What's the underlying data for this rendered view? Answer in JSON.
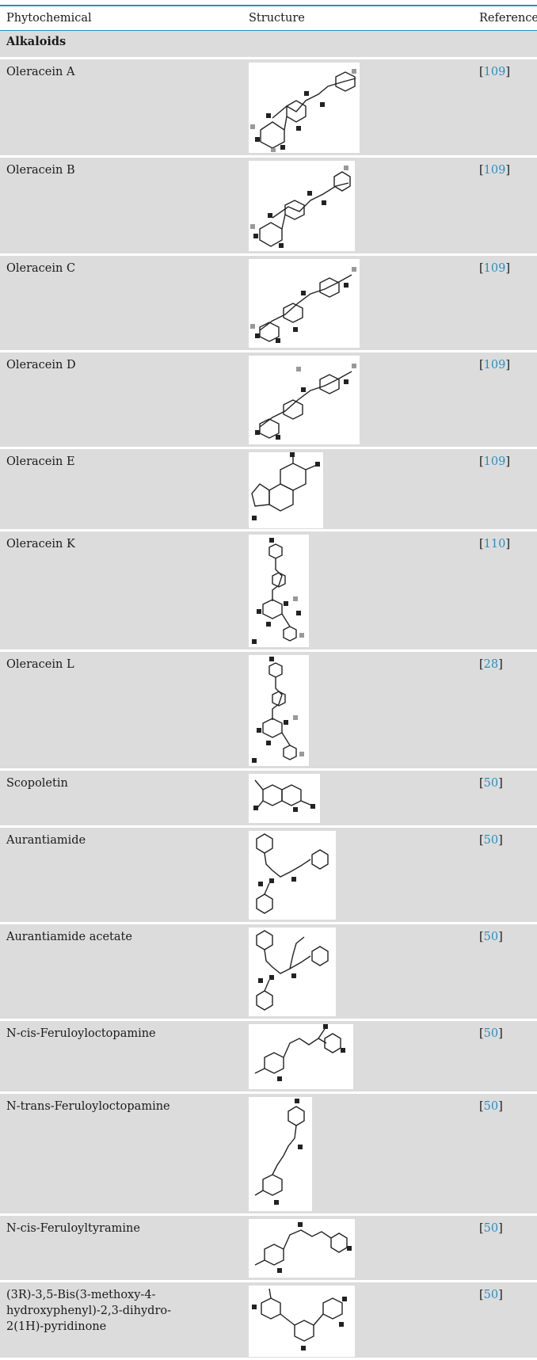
{
  "header": {
    "col1": "Phytochemical",
    "col2": "Structure",
    "col3": "Reference"
  },
  "category": "Alkaloids",
  "rows": [
    {
      "name": "Oleracein A",
      "ref": "109",
      "structure_icon": "molecule-structure-icon"
    },
    {
      "name": "Oleracein B",
      "ref": "109",
      "structure_icon": "molecule-structure-icon"
    },
    {
      "name": "Oleracein C",
      "ref": "109",
      "structure_icon": "molecule-structure-icon"
    },
    {
      "name": "Oleracein D",
      "ref": "109",
      "structure_icon": "molecule-structure-icon"
    },
    {
      "name": "Oleracein E",
      "ref": "109",
      "structure_icon": "molecule-structure-icon"
    },
    {
      "name": "Oleracein K",
      "ref": "110",
      "structure_icon": "molecule-structure-icon"
    },
    {
      "name": "Oleracein L",
      "ref": "28",
      "structure_icon": "molecule-structure-icon"
    },
    {
      "name": "Scopoletin",
      "ref": "50",
      "structure_icon": "molecule-structure-icon"
    },
    {
      "name": "Aurantiamide",
      "ref": "50",
      "structure_icon": "molecule-structure-icon"
    },
    {
      "name": "Aurantiamide acetate",
      "ref": "50",
      "structure_icon": "molecule-structure-icon"
    },
    {
      "name": "N-cis-Feruloyloctopamine",
      "ref": "50",
      "structure_icon": "molecule-structure-icon"
    },
    {
      "name": "N-trans-Feruloyloctopamine",
      "ref": "50",
      "structure_icon": "molecule-structure-icon"
    },
    {
      "name": "N-cis-Feruloyltyramine",
      "ref": "50",
      "structure_icon": "molecule-structure-icon"
    },
    {
      "name": "(3R)-3,5-Bis(3-methoxy-4-hydroxyphenyl)-2,3-dihydro-2(1H)-pyridinone",
      "ref": "50",
      "structure_icon": "molecule-structure-icon"
    }
  ],
  "colors": {
    "accent": "#2a8fc0",
    "row_bg": "#dcdcdc"
  }
}
